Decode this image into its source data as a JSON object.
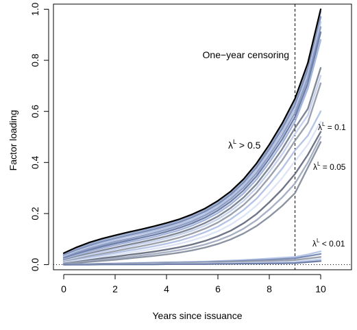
{
  "chart_data": {
    "type": "line",
    "xlabel": "Years since issuance",
    "ylabel": "Factor loading",
    "xlim": [
      -0.4,
      11.2
    ],
    "ylim": [
      -0.02,
      1.02
    ],
    "xticks": [
      0,
      2,
      4,
      6,
      8,
      10
    ],
    "yticks": [
      "0.0",
      "0.2",
      "0.4",
      "0.6",
      "0.8",
      "1.0"
    ],
    "grid": false,
    "legend": "none",
    "reference_lines": [
      {
        "type": "vertical",
        "x": 9,
        "style": "dashed",
        "color": "#000000"
      },
      {
        "type": "horizontal",
        "y": 0,
        "style": "dotted",
        "color": "#000000"
      }
    ],
    "annotations": {
      "censoring": "One−year censoring",
      "group_high_symbol": "λ",
      "group_high_sup": "L",
      "group_high_text": " > 0.5",
      "group_mid_symbol": "λ",
      "group_mid_sup": "L",
      "group_mid_text": " = 0.1",
      "group_low_symbol": "λ",
      "group_low_sup": "L",
      "group_low_text": " = 0.05",
      "group_tiny_symbol": "λ",
      "group_tiny_sup": "L",
      "group_tiny_text": " < 0.01"
    },
    "x": [
      0,
      0.5,
      1,
      1.5,
      2,
      2.5,
      3,
      3.5,
      4,
      4.5,
      5,
      5.5,
      6,
      6.5,
      7,
      7.5,
      8,
      8.5,
      9,
      9.5,
      10
    ],
    "series": [
      {
        "color": "#000000",
        "values": [
          0.045,
          0.068,
          0.087,
          0.102,
          0.115,
          0.127,
          0.138,
          0.15,
          0.163,
          0.178,
          0.197,
          0.22,
          0.25,
          0.287,
          0.335,
          0.396,
          0.47,
          0.553,
          0.65,
          0.79,
          1.0
        ]
      },
      {
        "color": "#9aabd0",
        "values": [
          0.04,
          0.063,
          0.082,
          0.097,
          0.11,
          0.122,
          0.133,
          0.145,
          0.158,
          0.173,
          0.192,
          0.215,
          0.245,
          0.282,
          0.33,
          0.39,
          0.463,
          0.545,
          0.64,
          0.78,
          0.99
        ]
      },
      {
        "color": "#7d8fb8",
        "values": [
          0.036,
          0.057,
          0.075,
          0.09,
          0.103,
          0.115,
          0.126,
          0.138,
          0.151,
          0.166,
          0.185,
          0.208,
          0.237,
          0.274,
          0.321,
          0.38,
          0.452,
          0.532,
          0.625,
          0.765,
          0.97
        ]
      },
      {
        "color": "#b9c5e3",
        "values": [
          0.032,
          0.052,
          0.069,
          0.084,
          0.097,
          0.109,
          0.12,
          0.131,
          0.144,
          0.159,
          0.177,
          0.2,
          0.229,
          0.265,
          0.311,
          0.369,
          0.44,
          0.518,
          0.61,
          0.745,
          0.95
        ]
      },
      {
        "color": "#8e9ec6",
        "values": [
          0.028,
          0.047,
          0.063,
          0.077,
          0.09,
          0.101,
          0.112,
          0.124,
          0.137,
          0.152,
          0.17,
          0.193,
          0.221,
          0.257,
          0.302,
          0.358,
          0.428,
          0.505,
          0.595,
          0.73,
          0.93
        ]
      },
      {
        "color": "#6f7fa8",
        "values": [
          0.025,
          0.042,
          0.057,
          0.071,
          0.083,
          0.094,
          0.105,
          0.116,
          0.129,
          0.144,
          0.162,
          0.184,
          0.212,
          0.247,
          0.291,
          0.346,
          0.415,
          0.49,
          0.578,
          0.71,
          0.91
        ]
      },
      {
        "color": "#a4b4da",
        "values": [
          0.021,
          0.037,
          0.051,
          0.064,
          0.076,
          0.087,
          0.097,
          0.108,
          0.121,
          0.135,
          0.153,
          0.175,
          0.202,
          0.236,
          0.279,
          0.333,
          0.4,
          0.474,
          0.56,
          0.69,
          0.88
        ]
      },
      {
        "color": "#7f8694",
        "values": [
          0.017,
          0.031,
          0.044,
          0.056,
          0.067,
          0.078,
          0.088,
          0.099,
          0.111,
          0.125,
          0.142,
          0.163,
          0.189,
          0.222,
          0.263,
          0.315,
          0.38,
          0.452,
          0.535,
          0.61,
          0.77
        ]
      },
      {
        "color": "#c6d2ee",
        "values": [
          0.014,
          0.027,
          0.039,
          0.05,
          0.061,
          0.071,
          0.081,
          0.091,
          0.103,
          0.117,
          0.133,
          0.153,
          0.178,
          0.21,
          0.25,
          0.3,
          0.363,
          0.432,
          0.512,
          0.585,
          0.74
        ]
      },
      {
        "color": "#9aa0ac",
        "values": [
          0.011,
          0.022,
          0.033,
          0.043,
          0.053,
          0.063,
          0.072,
          0.082,
          0.093,
          0.106,
          0.122,
          0.141,
          0.165,
          0.196,
          0.234,
          0.282,
          0.342,
          0.408,
          0.485,
          0.555,
          0.71
        ]
      },
      {
        "color": "#b5c3e6",
        "values": [
          0.009,
          0.018,
          0.028,
          0.037,
          0.046,
          0.055,
          0.063,
          0.072,
          0.082,
          0.094,
          0.109,
          0.127,
          0.149,
          0.178,
          0.214,
          0.258,
          0.314,
          0.376,
          0.447,
          0.505,
          0.6
        ]
      },
      {
        "color": "#dce4f5",
        "values": [
          0.007,
          0.015,
          0.023,
          0.031,
          0.039,
          0.047,
          0.054,
          0.062,
          0.071,
          0.082,
          0.095,
          0.111,
          0.131,
          0.157,
          0.19,
          0.231,
          0.282,
          0.339,
          0.405,
          0.47,
          0.56
        ]
      },
      {
        "color": "#6e7586",
        "values": [
          0.005,
          0.011,
          0.018,
          0.025,
          0.031,
          0.038,
          0.044,
          0.051,
          0.059,
          0.068,
          0.079,
          0.093,
          0.111,
          0.133,
          0.162,
          0.198,
          0.244,
          0.295,
          0.355,
          0.43,
          0.52
        ]
      },
      {
        "color": "#a7b0c4",
        "values": [
          0.004,
          0.009,
          0.014,
          0.019,
          0.025,
          0.03,
          0.036,
          0.042,
          0.049,
          0.057,
          0.067,
          0.079,
          0.095,
          0.115,
          0.141,
          0.174,
          0.216,
          0.263,
          0.318,
          0.4,
          0.5
        ]
      },
      {
        "color": "#8c93a3",
        "values": [
          0.003,
          0.007,
          0.011,
          0.015,
          0.019,
          0.024,
          0.029,
          0.034,
          0.04,
          0.047,
          0.056,
          0.067,
          0.081,
          0.099,
          0.122,
          0.151,
          0.188,
          0.23,
          0.28,
          0.38,
          0.48
        ]
      },
      {
        "color": "#b8c7e8",
        "values": [
          0.001,
          0.002,
          0.003,
          0.004,
          0.005,
          0.006,
          0.007,
          0.008,
          0.009,
          0.01,
          0.011,
          0.012,
          0.014,
          0.016,
          0.018,
          0.021,
          0.024,
          0.027,
          0.03,
          0.04,
          0.052
        ]
      },
      {
        "color": "#7d8fb8",
        "values": [
          0.001,
          0.002,
          0.002,
          0.003,
          0.004,
          0.005,
          0.006,
          0.007,
          0.008,
          0.008,
          0.009,
          0.01,
          0.012,
          0.013,
          0.015,
          0.017,
          0.019,
          0.022,
          0.025,
          0.033,
          0.042
        ]
      },
      {
        "color": "#9aa0ac",
        "values": [
          0.0,
          0.001,
          0.002,
          0.002,
          0.003,
          0.003,
          0.004,
          0.005,
          0.005,
          0.006,
          0.007,
          0.008,
          0.009,
          0.01,
          0.011,
          0.013,
          0.014,
          0.016,
          0.018,
          0.024,
          0.03
        ]
      },
      {
        "color": "#c6d2ee",
        "values": [
          0.0,
          0.001,
          0.001,
          0.001,
          0.002,
          0.002,
          0.002,
          0.003,
          0.003,
          0.004,
          0.004,
          0.005,
          0.005,
          0.006,
          0.007,
          0.008,
          0.009,
          0.01,
          0.011,
          0.016,
          0.021
        ]
      },
      {
        "color": "#6f7fa8",
        "values": [
          0.0,
          0.0,
          0.0,
          0.001,
          0.001,
          0.001,
          0.001,
          0.001,
          0.002,
          0.002,
          0.002,
          0.002,
          0.003,
          0.003,
          0.004,
          0.004,
          0.005,
          0.005,
          0.006,
          0.01,
          0.014
        ]
      }
    ]
  }
}
